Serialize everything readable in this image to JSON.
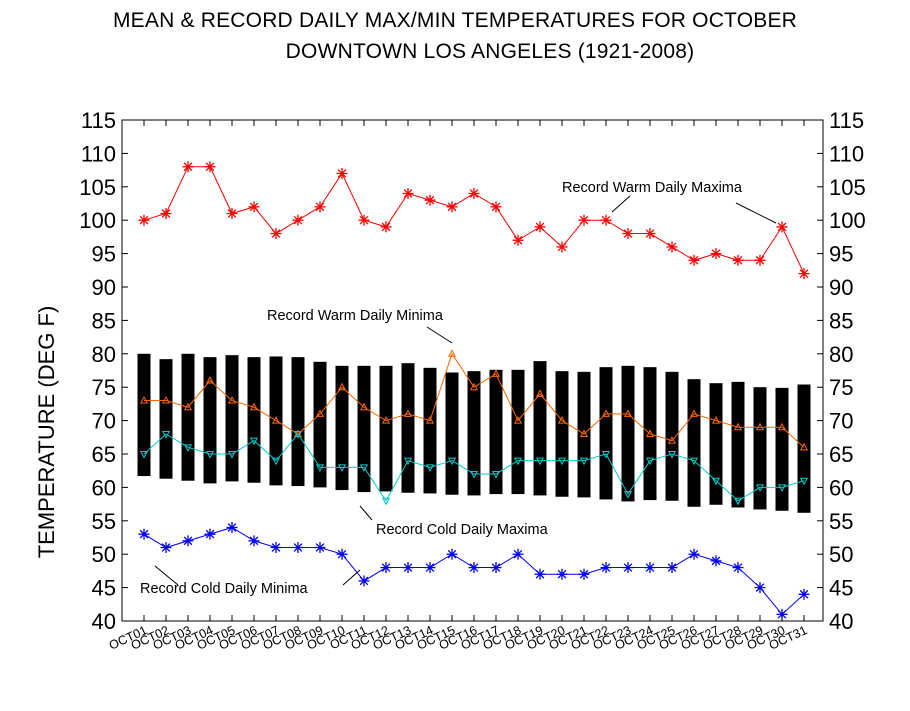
{
  "chart_data": {
    "type": "line",
    "title": "MEAN & RECORD DAILY MAX/MIN TEMPERATURES FOR OCTOBER",
    "subtitle": "DOWNTOWN LOS ANGELES (1921-2008)",
    "ylabel": "TEMPERATURE (DEG F)",
    "xlabel": "",
    "ylim": [
      40,
      115
    ],
    "yticks": [
      40,
      45,
      50,
      55,
      60,
      65,
      70,
      75,
      80,
      85,
      90,
      95,
      100,
      105,
      110,
      115
    ],
    "categories": [
      "OCT01",
      "OCT02",
      "OCT03",
      "OCT04",
      "OCT05",
      "OCT06",
      "OCT07",
      "OCT08",
      "OCT09",
      "OCT10",
      "OCT11",
      "OCT12",
      "OCT13",
      "OCT14",
      "OCT15",
      "OCT16",
      "OCT17",
      "OCT18",
      "OCT19",
      "OCT20",
      "OCT21",
      "OCT22",
      "OCT23",
      "OCT24",
      "OCT25",
      "OCT26",
      "OCT27",
      "OCT28",
      "OCT29",
      "OCT30",
      "OCT31"
    ],
    "mean_range_bars": {
      "color": "#000000",
      "high": [
        80,
        79.2,
        80,
        79.5,
        79.8,
        79.5,
        79.6,
        79.5,
        78.8,
        78.2,
        78.2,
        78.2,
        78.6,
        77.9,
        77.2,
        77.4,
        77.6,
        77.6,
        78.9,
        77.4,
        77.3,
        78,
        78.2,
        78,
        77.3,
        76.2,
        75.6,
        75.8,
        75,
        74.9,
        75.4
      ],
      "low": [
        61.7,
        61.3,
        61,
        60.6,
        60.9,
        60.7,
        60.3,
        60.2,
        60,
        59.6,
        59.3,
        59.4,
        59.2,
        59.1,
        58.9,
        58.8,
        59,
        59,
        58.8,
        58.6,
        58.5,
        58.2,
        57.9,
        58.1,
        58,
        57.1,
        57.4,
        57,
        56.7,
        56.5,
        56.2
      ]
    },
    "series": [
      {
        "color": "#ff0000",
        "marker": "asterisk",
        "values": [
          100,
          101,
          108,
          108,
          101,
          102,
          98,
          100,
          102,
          107,
          100,
          99,
          104,
          103,
          102,
          104,
          102,
          97,
          99,
          96,
          100,
          100,
          98,
          98,
          96,
          94,
          95,
          94,
          94,
          99,
          92
        ]
      },
      {
        "color": "#ff6600",
        "marker": "triangle-up",
        "values": [
          73,
          73,
          72,
          76,
          73,
          72,
          70,
          68,
          71,
          75,
          72,
          70,
          71,
          70,
          80,
          75,
          77,
          70,
          74,
          70,
          68,
          71,
          71,
          68,
          67,
          71,
          70,
          69,
          69,
          69,
          66
        ]
      },
      {
        "color": "#00cccc",
        "marker": "triangle-down",
        "values": [
          65,
          68,
          66,
          65,
          65,
          67,
          64,
          68,
          63,
          63,
          63,
          58,
          64,
          63,
          64,
          62,
          62,
          64,
          64,
          64,
          64,
          65,
          59,
          64,
          65,
          64,
          61,
          58,
          60,
          60,
          61
        ]
      },
      {
        "color": "#0000ff",
        "marker": "asterisk",
        "values": [
          53,
          51,
          52,
          53,
          54,
          52,
          51,
          51,
          51,
          50,
          46,
          48,
          48,
          48,
          50,
          48,
          48,
          50,
          47,
          47,
          47,
          48,
          48,
          48,
          48,
          50,
          49,
          48,
          45,
          41,
          44
        ]
      }
    ],
    "annotations": [
      {
        "text": "Record Warm Daily Maxima"
      },
      {
        "text": "Record Warm Daily Minima"
      },
      {
        "text": "Record Cold Daily Maxima"
      },
      {
        "text": "Record Cold Daily Minima"
      }
    ],
    "grid": false,
    "legend": "none"
  }
}
